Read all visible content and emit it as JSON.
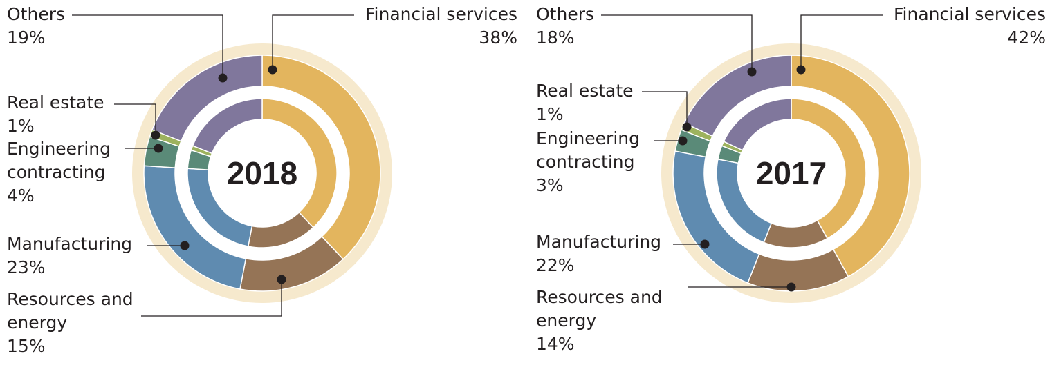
{
  "chart_data": [
    {
      "type": "pie",
      "title": "2018",
      "categories": [
        "Financial services",
        "Resources and energy",
        "Manufacturing",
        "Engineering contracting",
        "Real estate",
        "Others"
      ],
      "values": [
        38,
        15,
        23,
        4,
        1,
        19
      ],
      "value_labels": [
        "38%",
        "15%",
        "23%",
        "4%",
        "1%",
        "19%"
      ],
      "label_lines": {
        "Financial services": [
          "Financial services"
        ],
        "Resources and energy": [
          "Resources and",
          "energy"
        ],
        "Manufacturing": [
          "Manufacturing"
        ],
        "Engineering contracting": [
          "Engineering",
          "contracting"
        ],
        "Real estate": [
          "Real estate"
        ],
        "Others": [
          "Others"
        ]
      }
    },
    {
      "type": "pie",
      "title": "2017",
      "categories": [
        "Financial services",
        "Resources and energy",
        "Manufacturing",
        "Engineering contracting",
        "Real estate",
        "Others"
      ],
      "values": [
        42,
        14,
        22,
        3,
        1,
        18
      ],
      "value_labels": [
        "42%",
        "14%",
        "22%",
        "3%",
        "1%",
        "18%"
      ],
      "label_lines": {
        "Financial services": [
          "Financial services"
        ],
        "Resources and energy": [
          "Resources and",
          "energy"
        ],
        "Manufacturing": [
          "Manufacturing"
        ],
        "Engineering contracting": [
          "Engineering",
          "contracting"
        ],
        "Real estate": [
          "Real estate"
        ],
        "Others": [
          "Others"
        ]
      }
    }
  ],
  "colors": {
    "Financial services": "#e3b55e",
    "Resources and energy": "#957456",
    "Manufacturing": "#5f8bb0",
    "Engineering contracting": "#5a8a78",
    "Real estate": "#9db25e",
    "Others": "#80779c",
    "halo": "#f6e9cd",
    "leader": "#231f20"
  }
}
